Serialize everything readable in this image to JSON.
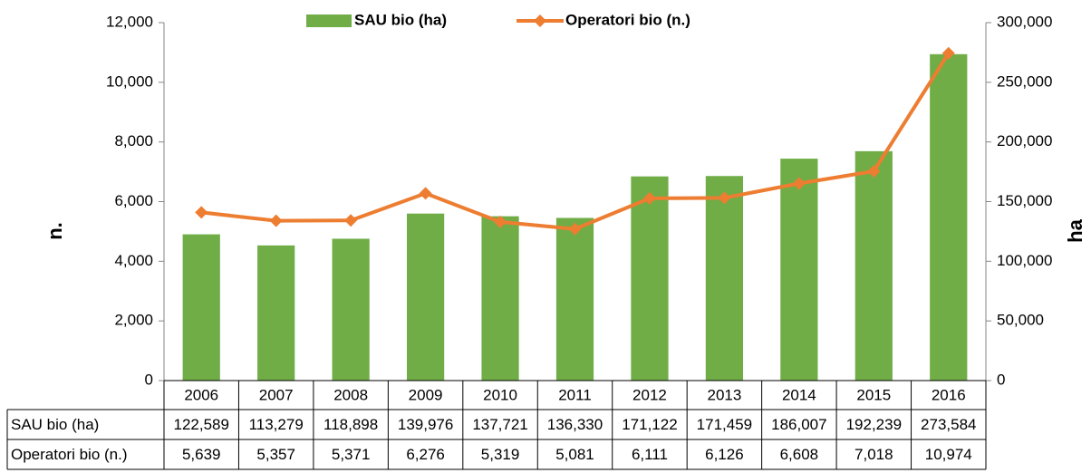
{
  "chart_data": {
    "type": "bar",
    "categories": [
      "2006",
      "2007",
      "2008",
      "2009",
      "2010",
      "2011",
      "2012",
      "2013",
      "2014",
      "2015",
      "2016"
    ],
    "ylabel": "n.",
    "y2label": "ha",
    "ylim": [
      0,
      12000
    ],
    "yticks": [
      0,
      {
        "value": 2000,
        "label": "2,000"
      },
      {
        "value": 4000,
        "label": "4,000"
      },
      {
        "value": 6000,
        "label": "6,000"
      },
      {
        "value": 8000,
        "label": "8,000"
      },
      {
        "value": 10000,
        "label": "10,000"
      },
      {
        "value": 12000,
        "label": "12,000"
      }
    ],
    "y2lim": [
      0,
      300000
    ],
    "y2ticks": [
      0,
      {
        "value": 50000,
        "label": "50,000"
      },
      {
        "value": 100000,
        "label": "100,000"
      },
      {
        "value": 150000,
        "label": "150,000"
      },
      {
        "value": 200000,
        "label": "200,000"
      },
      {
        "value": 250000,
        "label": "250,000"
      },
      {
        "value": 300000,
        "label": "300,000"
      }
    ],
    "legend": "top",
    "series": [
      {
        "name": "SAU bio (ha)",
        "type": "bar",
        "axis": "y2",
        "color": "#70ad47",
        "values": [
          122589,
          113279,
          118898,
          139976,
          137721,
          136330,
          171122,
          171459,
          186007,
          192239,
          273584
        ],
        "value_labels": [
          "122,589",
          "113,279",
          "118,898",
          "139,976",
          "137,721",
          "136,330",
          "171,122",
          "171,459",
          "186,007",
          "192,239",
          "273,584"
        ]
      },
      {
        "name": "Operatori bio (n.)",
        "type": "line",
        "color": "#ed7d31",
        "values": [
          5639,
          5357,
          5371,
          6276,
          5319,
          5081,
          6111,
          6126,
          6608,
          7018,
          10974
        ],
        "value_labels": [
          "5,639",
          "5,357",
          "5,371",
          "6,276",
          "5,319",
          "5,081",
          "6,111",
          "6,126",
          "6,608",
          "7,018",
          "10,974"
        ]
      }
    ]
  }
}
